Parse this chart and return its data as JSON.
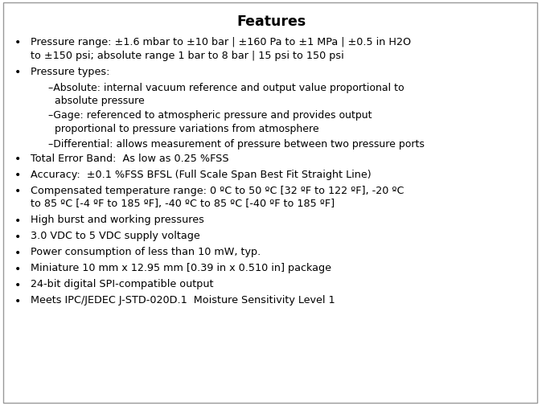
{
  "title": "Features",
  "title_fontsize": 12.5,
  "body_fontsize": 9.2,
  "sub_fontsize": 9.0,
  "bg_color": "#ffffff",
  "text_color": "#000000",
  "border_color": "#999999",
  "bullet_items": [
    {
      "type": "bullet",
      "lines": [
        "Pressure range: ±1.6 mbar to ±10 bar | ±160 Pa to ±1 MPa | ±0.5 in H2O",
        "to ±150 psi; absolute range 1 bar to 8 bar | 15 psi to 150 psi"
      ]
    },
    {
      "type": "bullet",
      "lines": [
        "Pressure types:"
      ]
    },
    {
      "type": "sub",
      "lines": [
        "–Absolute: internal vacuum reference and output value proportional to",
        "  absolute pressure"
      ]
    },
    {
      "type": "sub",
      "lines": [
        "–Gage: referenced to atmospheric pressure and provides output",
        "  proportional to pressure variations from atmosphere"
      ]
    },
    {
      "type": "sub",
      "lines": [
        "–Differential: allows measurement of pressure between two pressure ports"
      ]
    },
    {
      "type": "bullet",
      "lines": [
        "Total Error Band:  As low as 0.25 %FSS"
      ]
    },
    {
      "type": "bullet",
      "lines": [
        "Accuracy:  ±0.1 %FSS BFSL (Full Scale Span Best Fit Straight Line)"
      ]
    },
    {
      "type": "bullet",
      "lines": [
        "Compensated temperature range: 0 ºC to 50 ºC [32 ºF to 122 ºF], -20 ºC",
        "to 85 ºC [-4 ºF to 185 ºF], -40 ºC to 85 ºC [-40 ºF to 185 ºF]"
      ]
    },
    {
      "type": "bullet",
      "lines": [
        "High burst and working pressures"
      ]
    },
    {
      "type": "bullet",
      "lines": [
        "3.0 VDC to 5 VDC supply voltage"
      ]
    },
    {
      "type": "bullet",
      "lines": [
        "Power consumption of less than 10 mW, typ."
      ]
    },
    {
      "type": "bullet",
      "lines": [
        "Miniature 10 mm x 12.95 mm [0.39 in x 0.510 in] package"
      ]
    },
    {
      "type": "bullet",
      "lines": [
        "24-bit digital SPI-compatible output"
      ]
    },
    {
      "type": "bullet",
      "lines": [
        "Meets IPC/JEDEC J-STD-020D.1  Moisture Sensitivity Level 1"
      ]
    }
  ]
}
